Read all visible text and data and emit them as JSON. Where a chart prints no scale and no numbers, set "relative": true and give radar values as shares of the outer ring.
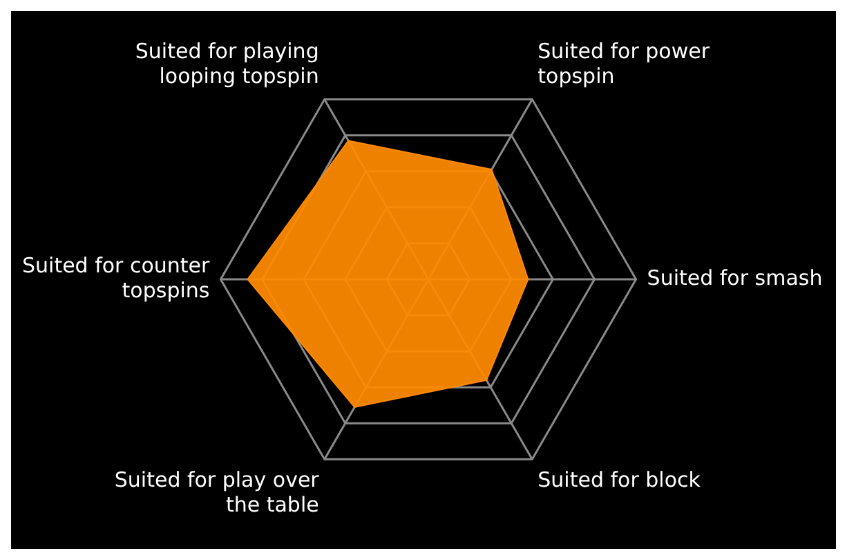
{
  "chart_data": {
    "type": "radar",
    "relative": true,
    "categories": [
      "Suited for power topspin",
      "Suited for smash",
      "Suited for block",
      "Suited for play over the table",
      "Suited for counter topspins",
      "Suited for playing looping topspin"
    ],
    "series": [
      {
        "color": "#ff8a00",
        "values": [
          0.61,
          0.48,
          0.56,
          0.71,
          0.87,
          0.77
        ]
      }
    ],
    "legend": false,
    "marker": "none"
  }
}
